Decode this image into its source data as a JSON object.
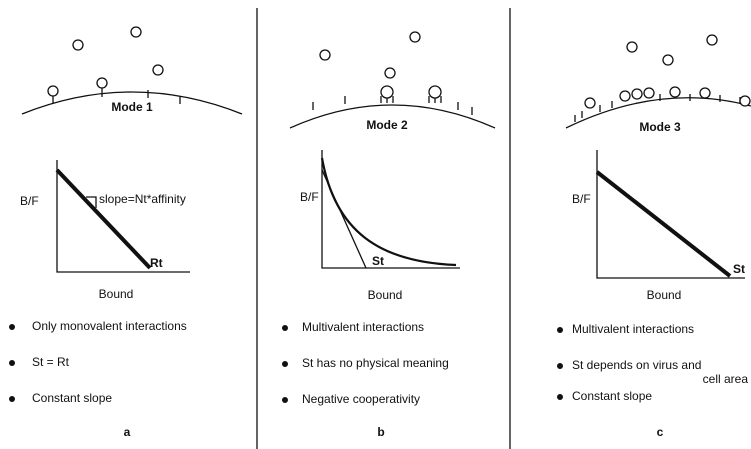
{
  "panels": [
    {
      "mode": "Mode 1",
      "y_label": "B/F",
      "x_label": "Bound",
      "annotations": [
        "slope=Nt*affinity",
        "Rt"
      ],
      "bullets": [
        "Only monovalent interactions",
        "St = Rt",
        "Constant slope"
      ],
      "letter": "a"
    },
    {
      "mode": "Mode 2",
      "y_label": "B/F",
      "x_label": "Bound",
      "annotations": [
        "St"
      ],
      "bullets": [
        "Multivalent  interactions",
        "St has no physical meaning",
        "Negative cooperativity"
      ],
      "letter": "b"
    },
    {
      "mode": "Mode 3",
      "y_label": "B/F",
      "x_label": "Bound",
      "annotations": [
        "St"
      ],
      "bullets": [
        "Multivalent  interactions",
        "St depends on virus and",
        "cell area",
        "Constant slope"
      ],
      "letter": "c"
    }
  ]
}
